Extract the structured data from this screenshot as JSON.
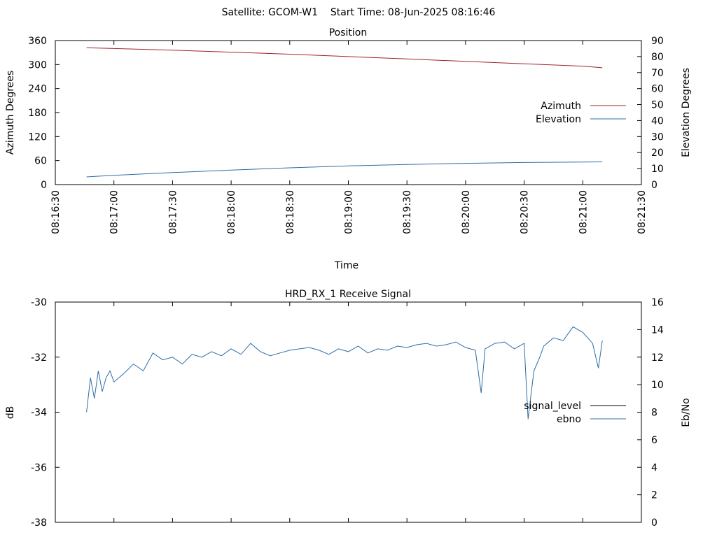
{
  "header": {
    "text": "Satellite: GCOM-W1    Start Time: 08-Jun-2025 08:16:46"
  },
  "chart_data": [
    {
      "type": "line",
      "title": "Position",
      "xlabel": "Time",
      "ylabel": "Azimuth Degrees",
      "y2label": "Elevation Degrees",
      "x_ticks": [
        "08:16:30",
        "08:17:00",
        "08:17:30",
        "08:18:00",
        "08:18:30",
        "08:19:00",
        "08:19:30",
        "08:20:00",
        "08:20:30",
        "08:21:00",
        "08:21:30"
      ],
      "ylim": [
        0,
        360
      ],
      "y_ticks": [
        0,
        60,
        120,
        180,
        240,
        300,
        360
      ],
      "y2lim": [
        0,
        90
      ],
      "y2_ticks": [
        0,
        10,
        20,
        30,
        40,
        50,
        60,
        70,
        80,
        90
      ],
      "legend_position": "right",
      "series": [
        {
          "name": "Azimuth",
          "axis": "y1",
          "color": "#a0222b",
          "x": [
            "08:16:46",
            "08:17:00",
            "08:17:30",
            "08:18:00",
            "08:18:30",
            "08:19:00",
            "08:19:30",
            "08:20:00",
            "08:20:30",
            "08:21:00",
            "08:21:10"
          ],
          "values": [
            342,
            340,
            336,
            331,
            326,
            320,
            314,
            308,
            302,
            296,
            292
          ]
        },
        {
          "name": "Elevation",
          "axis": "y2",
          "color": "#2e6da4",
          "x": [
            "08:16:46",
            "08:17:00",
            "08:17:30",
            "08:18:00",
            "08:18:30",
            "08:19:00",
            "08:19:30",
            "08:20:00",
            "08:20:30",
            "08:21:00",
            "08:21:10"
          ],
          "values": [
            4.8,
            5.8,
            7.5,
            9.1,
            10.5,
            11.7,
            12.6,
            13.3,
            13.8,
            14.1,
            14.2
          ]
        }
      ]
    },
    {
      "type": "line",
      "title": "HRD_RX_1 Receive Signal",
      "ylabel": "dB",
      "y2label": "Eb/No",
      "ylim": [
        -38,
        -30
      ],
      "y_ticks": [
        -38,
        -36,
        -34,
        -32,
        -30
      ],
      "y2lim": [
        0,
        16
      ],
      "y2_ticks": [
        0,
        2,
        4,
        6,
        8,
        10,
        12,
        14,
        16
      ],
      "legend_position": "right",
      "series": [
        {
          "name": "signal_level",
          "axis": "y1",
          "color": "#000000",
          "x": [],
          "values": []
        },
        {
          "name": "ebno",
          "axis": "y2",
          "color": "#2e6da4",
          "x": [
            "08:16:46",
            "08:16:48",
            "08:16:50",
            "08:16:52",
            "08:16:54",
            "08:16:56",
            "08:16:58",
            "08:17:00",
            "08:17:05",
            "08:17:10",
            "08:17:15",
            "08:17:20",
            "08:17:25",
            "08:17:30",
            "08:17:35",
            "08:17:40",
            "08:17:45",
            "08:17:50",
            "08:17:55",
            "08:18:00",
            "08:18:05",
            "08:18:10",
            "08:18:15",
            "08:18:20",
            "08:18:25",
            "08:18:30",
            "08:18:35",
            "08:18:40",
            "08:18:45",
            "08:18:50",
            "08:18:55",
            "08:19:00",
            "08:19:05",
            "08:19:10",
            "08:19:15",
            "08:19:20",
            "08:19:25",
            "08:19:30",
            "08:19:35",
            "08:19:40",
            "08:19:45",
            "08:19:50",
            "08:19:55",
            "08:20:00",
            "08:20:05",
            "08:20:08",
            "08:20:10",
            "08:20:15",
            "08:20:20",
            "08:20:25",
            "08:20:30",
            "08:20:32",
            "08:20:35",
            "08:20:38",
            "08:20:40",
            "08:20:45",
            "08:20:50",
            "08:20:55",
            "08:21:00",
            "08:21:05",
            "08:21:08",
            "08:21:10"
          ],
          "values": [
            8.0,
            10.5,
            9.0,
            11.0,
            9.5,
            10.5,
            11.0,
            10.2,
            10.8,
            11.5,
            11.0,
            12.3,
            11.8,
            12.0,
            11.5,
            12.2,
            12.0,
            12.4,
            12.1,
            12.6,
            12.2,
            13.0,
            12.4,
            12.1,
            12.3,
            12.5,
            12.6,
            12.7,
            12.5,
            12.2,
            12.6,
            12.4,
            12.8,
            12.3,
            12.6,
            12.5,
            12.8,
            12.7,
            12.9,
            13.0,
            12.8,
            12.9,
            13.1,
            12.7,
            12.5,
            9.4,
            12.6,
            13.0,
            13.1,
            12.6,
            13.0,
            7.5,
            11.0,
            12.0,
            12.8,
            13.4,
            13.2,
            14.2,
            13.8,
            13.0,
            11.2,
            13.2
          ]
        },
        {
          "name": "",
          "axis": "y2",
          "color": "#00b000",
          "x": [],
          "values": []
        }
      ]
    }
  ]
}
